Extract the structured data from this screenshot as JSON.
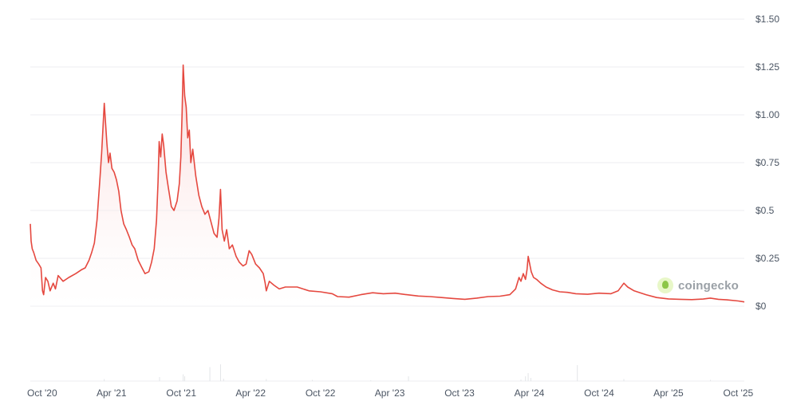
{
  "chart_data": {
    "type": "area",
    "title": "",
    "xlabel": "",
    "ylabel": "",
    "ylim": [
      0,
      1.5
    ],
    "yticks": [
      {
        "value": 0,
        "label": "$0"
      },
      {
        "value": 0.25,
        "label": "$0.25"
      },
      {
        "value": 0.5,
        "label": "$0.5"
      },
      {
        "value": 0.75,
        "label": "$0.75"
      },
      {
        "value": 1.0,
        "label": "$1.00"
      },
      {
        "value": 1.25,
        "label": "$1.25"
      },
      {
        "value": 1.5,
        "label": "$1.50"
      }
    ],
    "xticks": [
      {
        "date": "2020-10-01",
        "label": "Oct '20"
      },
      {
        "date": "2021-04-01",
        "label": "Apr '21"
      },
      {
        "date": "2021-10-01",
        "label": "Oct '21"
      },
      {
        "date": "2022-04-01",
        "label": "Apr '22"
      },
      {
        "date": "2022-10-01",
        "label": "Oct '22"
      },
      {
        "date": "2023-04-01",
        "label": "Apr '23"
      },
      {
        "date": "2023-10-01",
        "label": "Oct '23"
      },
      {
        "date": "2024-04-01",
        "label": "Apr '24"
      },
      {
        "date": "2024-10-01",
        "label": "Oct '24"
      },
      {
        "date": "2025-04-01",
        "label": "Apr '25"
      },
      {
        "date": "2025-10-01",
        "label": "Oct '25"
      }
    ],
    "xlim": [
      "2020-08-31",
      "2025-10-17"
    ],
    "line_color": "#e5483f",
    "fill_color": "#fde8e8",
    "series": [
      {
        "points": [
          [
            "2020-08-31",
            0.43
          ],
          [
            "2020-09-02",
            0.34
          ],
          [
            "2020-09-05",
            0.3
          ],
          [
            "2020-09-09",
            0.28
          ],
          [
            "2020-09-15",
            0.24
          ],
          [
            "2020-09-22",
            0.22
          ],
          [
            "2020-09-28",
            0.2
          ],
          [
            "2020-10-02",
            0.08
          ],
          [
            "2020-10-05",
            0.06
          ],
          [
            "2020-10-10",
            0.15
          ],
          [
            "2020-10-16",
            0.13
          ],
          [
            "2020-10-22",
            0.08
          ],
          [
            "2020-10-30",
            0.12
          ],
          [
            "2020-11-05",
            0.09
          ],
          [
            "2020-11-12",
            0.16
          ],
          [
            "2020-11-25",
            0.13
          ],
          [
            "2020-12-10",
            0.15
          ],
          [
            "2020-12-28",
            0.17
          ],
          [
            "2021-01-12",
            0.19
          ],
          [
            "2021-01-22",
            0.2
          ],
          [
            "2021-02-01",
            0.24
          ],
          [
            "2021-02-08",
            0.28
          ],
          [
            "2021-02-15",
            0.33
          ],
          [
            "2021-02-22",
            0.45
          ],
          [
            "2021-03-01",
            0.65
          ],
          [
            "2021-03-06",
            0.8
          ],
          [
            "2021-03-10",
            0.95
          ],
          [
            "2021-03-13",
            1.06
          ],
          [
            "2021-03-16",
            0.97
          ],
          [
            "2021-03-20",
            0.85
          ],
          [
            "2021-03-24",
            0.75
          ],
          [
            "2021-03-28",
            0.8
          ],
          [
            "2021-04-02",
            0.72
          ],
          [
            "2021-04-08",
            0.7
          ],
          [
            "2021-04-14",
            0.66
          ],
          [
            "2021-04-20",
            0.6
          ],
          [
            "2021-04-26",
            0.5
          ],
          [
            "2021-05-03",
            0.43
          ],
          [
            "2021-05-10",
            0.4
          ],
          [
            "2021-05-18",
            0.36
          ],
          [
            "2021-05-25",
            0.32
          ],
          [
            "2021-06-01",
            0.3
          ],
          [
            "2021-06-10",
            0.24
          ],
          [
            "2021-06-20",
            0.2
          ],
          [
            "2021-06-28",
            0.17
          ],
          [
            "2021-07-08",
            0.18
          ],
          [
            "2021-07-15",
            0.23
          ],
          [
            "2021-07-22",
            0.3
          ],
          [
            "2021-07-28",
            0.45
          ],
          [
            "2021-08-01",
            0.65
          ],
          [
            "2021-08-04",
            0.86
          ],
          [
            "2021-08-08",
            0.78
          ],
          [
            "2021-08-12",
            0.9
          ],
          [
            "2021-08-16",
            0.84
          ],
          [
            "2021-08-22",
            0.7
          ],
          [
            "2021-08-28",
            0.62
          ],
          [
            "2021-09-05",
            0.52
          ],
          [
            "2021-09-12",
            0.5
          ],
          [
            "2021-09-20",
            0.55
          ],
          [
            "2021-09-26",
            0.64
          ],
          [
            "2021-09-30",
            0.78
          ],
          [
            "2021-10-03",
            1.0
          ],
          [
            "2021-10-06",
            1.26
          ],
          [
            "2021-10-10",
            1.1
          ],
          [
            "2021-10-14",
            1.04
          ],
          [
            "2021-10-18",
            0.88
          ],
          [
            "2021-10-22",
            0.92
          ],
          [
            "2021-10-26",
            0.75
          ],
          [
            "2021-10-31",
            0.82
          ],
          [
            "2021-11-08",
            0.68
          ],
          [
            "2021-11-16",
            0.58
          ],
          [
            "2021-11-24",
            0.52
          ],
          [
            "2021-12-02",
            0.48
          ],
          [
            "2021-12-10",
            0.5
          ],
          [
            "2021-12-18",
            0.44
          ],
          [
            "2021-12-26",
            0.38
          ],
          [
            "2022-01-03",
            0.36
          ],
          [
            "2022-01-08",
            0.46
          ],
          [
            "2022-01-12",
            0.61
          ],
          [
            "2022-01-16",
            0.4
          ],
          [
            "2022-01-22",
            0.34
          ],
          [
            "2022-01-28",
            0.4
          ],
          [
            "2022-02-04",
            0.3
          ],
          [
            "2022-02-12",
            0.32
          ],
          [
            "2022-02-22",
            0.26
          ],
          [
            "2022-03-02",
            0.23
          ],
          [
            "2022-03-12",
            0.21
          ],
          [
            "2022-03-20",
            0.22
          ],
          [
            "2022-03-28",
            0.29
          ],
          [
            "2022-04-04",
            0.27
          ],
          [
            "2022-04-14",
            0.22
          ],
          [
            "2022-04-24",
            0.2
          ],
          [
            "2022-05-04",
            0.17
          ],
          [
            "2022-05-09",
            0.12
          ],
          [
            "2022-05-12",
            0.08
          ],
          [
            "2022-05-20",
            0.13
          ],
          [
            "2022-06-01",
            0.11
          ],
          [
            "2022-06-15",
            0.09
          ],
          [
            "2022-07-01",
            0.1
          ],
          [
            "2022-08-01",
            0.1
          ],
          [
            "2022-09-01",
            0.08
          ],
          [
            "2022-10-01",
            0.075
          ],
          [
            "2022-11-01",
            0.065
          ],
          [
            "2022-11-15",
            0.05
          ],
          [
            "2022-12-15",
            0.047
          ],
          [
            "2023-01-15",
            0.06
          ],
          [
            "2023-02-15",
            0.07
          ],
          [
            "2023-03-15",
            0.065
          ],
          [
            "2023-04-15",
            0.068
          ],
          [
            "2023-05-15",
            0.06
          ],
          [
            "2023-06-15",
            0.053
          ],
          [
            "2023-07-15",
            0.05
          ],
          [
            "2023-08-15",
            0.045
          ],
          [
            "2023-09-15",
            0.04
          ],
          [
            "2023-10-15",
            0.036
          ],
          [
            "2023-11-15",
            0.042
          ],
          [
            "2023-12-15",
            0.05
          ],
          [
            "2024-01-15",
            0.052
          ],
          [
            "2024-02-10",
            0.06
          ],
          [
            "2024-02-25",
            0.09
          ],
          [
            "2024-03-05",
            0.15
          ],
          [
            "2024-03-10",
            0.13
          ],
          [
            "2024-03-16",
            0.17
          ],
          [
            "2024-03-22",
            0.14
          ],
          [
            "2024-03-26",
            0.19
          ],
          [
            "2024-03-29",
            0.26
          ],
          [
            "2024-04-02",
            0.22
          ],
          [
            "2024-04-06",
            0.18
          ],
          [
            "2024-04-12",
            0.15
          ],
          [
            "2024-04-20",
            0.14
          ],
          [
            "2024-05-01",
            0.12
          ],
          [
            "2024-05-15",
            0.1
          ],
          [
            "2024-06-01",
            0.085
          ],
          [
            "2024-06-20",
            0.075
          ],
          [
            "2024-07-10",
            0.072
          ],
          [
            "2024-08-01",
            0.065
          ],
          [
            "2024-09-01",
            0.062
          ],
          [
            "2024-10-01",
            0.068
          ],
          [
            "2024-11-01",
            0.065
          ],
          [
            "2024-11-20",
            0.08
          ],
          [
            "2024-12-05",
            0.12
          ],
          [
            "2024-12-15",
            0.1
          ],
          [
            "2025-01-01",
            0.08
          ],
          [
            "2025-02-01",
            0.06
          ],
          [
            "2025-03-01",
            0.045
          ],
          [
            "2025-04-01",
            0.038
          ],
          [
            "2025-05-01",
            0.036
          ],
          [
            "2025-06-01",
            0.034
          ],
          [
            "2025-07-01",
            0.037
          ],
          [
            "2025-07-20",
            0.042
          ],
          [
            "2025-08-10",
            0.036
          ],
          [
            "2025-09-01",
            0.033
          ],
          [
            "2025-10-01",
            0.027
          ],
          [
            "2025-10-17",
            0.022
          ]
        ]
      }
    ],
    "volume": [
      [
        "2021-03-13",
        0.05
      ],
      [
        "2021-08-05",
        0.1
      ],
      [
        "2021-10-06",
        0.17
      ],
      [
        "2021-10-10",
        0.12
      ],
      [
        "2021-12-15",
        0.35
      ],
      [
        "2022-01-12",
        0.42
      ],
      [
        "2022-01-20",
        0.06
      ],
      [
        "2022-05-12",
        0.05
      ],
      [
        "2022-09-10",
        0.03
      ],
      [
        "2023-02-10",
        0.02
      ],
      [
        "2023-05-20",
        0.12
      ],
      [
        "2024-03-10",
        0.04
      ],
      [
        "2024-03-22",
        0.12
      ],
      [
        "2024-03-29",
        0.2
      ],
      [
        "2024-04-05",
        0.08
      ],
      [
        "2024-08-05",
        0.4
      ],
      [
        "2024-12-05",
        0.05
      ],
      [
        "2025-07-20",
        0.03
      ]
    ],
    "watermark": "coingecko"
  }
}
